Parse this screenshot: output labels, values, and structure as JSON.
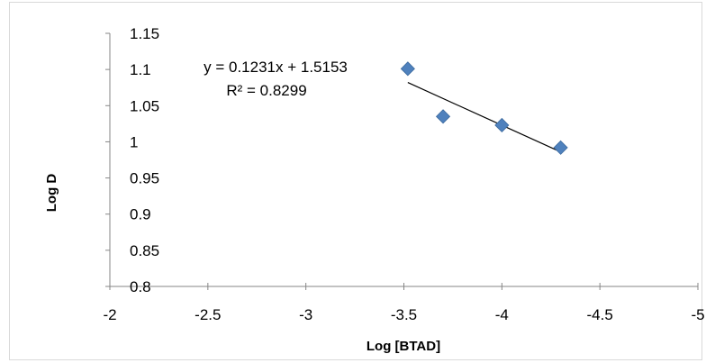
{
  "chart_data": {
    "type": "scatter",
    "xlabel": "Log [BTAD]",
    "ylabel": "Log D",
    "xlim": [
      -2,
      -5
    ],
    "ylim": [
      0.8,
      1.15
    ],
    "x_axis_reversed": true,
    "x_ticks": [
      "-2",
      "-2.5",
      "-3",
      "-3.5",
      "-4",
      "-4.5",
      "-5"
    ],
    "y_ticks": [
      "0.8",
      "0.85",
      "0.9",
      "0.95",
      "1",
      "1.05",
      "1.1",
      "1.15"
    ],
    "grid": false,
    "legend": "none",
    "series": [
      {
        "x": [
          -3.52,
          -3.7,
          -4.0,
          -4.3
        ],
        "y": [
          1.101,
          1.035,
          1.023,
          0.992
        ],
        "marker": "diamond",
        "color": "#4f81bd"
      }
    ],
    "trendline": {
      "type": "linear",
      "x_range": [
        -3.52,
        -4.3
      ],
      "equation": "y = 0.1231x + 1.5153",
      "r_squared": "R² = 0.8299",
      "color": "#000000"
    }
  }
}
